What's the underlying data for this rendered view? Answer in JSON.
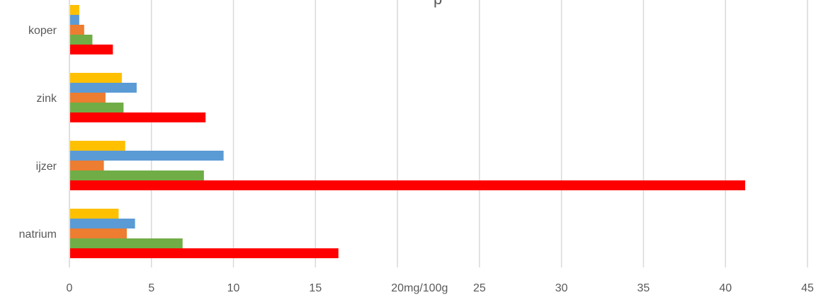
{
  "chart_data": {
    "type": "bar",
    "orientation": "horizontal",
    "title_fragment": "p",
    "xlabel": "mg/100g",
    "ylabel": "",
    "xlim": [
      0,
      45
    ],
    "xticks": [
      0,
      5,
      10,
      15,
      20,
      25,
      30,
      35,
      40,
      45
    ],
    "grid": "vertical",
    "categories": [
      "natrium",
      "ijzer",
      "zink",
      "koper"
    ],
    "series": [
      {
        "color": "#FF0000",
        "values": [
          16.4,
          41.2,
          8.3,
          2.65
        ]
      },
      {
        "color": "#70AD47",
        "values": [
          6.9,
          8.2,
          3.3,
          1.4
        ]
      },
      {
        "color": "#ED7D31",
        "values": [
          3.5,
          2.1,
          2.2,
          0.9
        ]
      },
      {
        "color": "#5B9BD5",
        "values": [
          4.0,
          9.4,
          4.1,
          0.6
        ]
      },
      {
        "color": "#FFC000",
        "values": [
          3.0,
          3.4,
          3.2,
          0.6
        ]
      }
    ]
  }
}
